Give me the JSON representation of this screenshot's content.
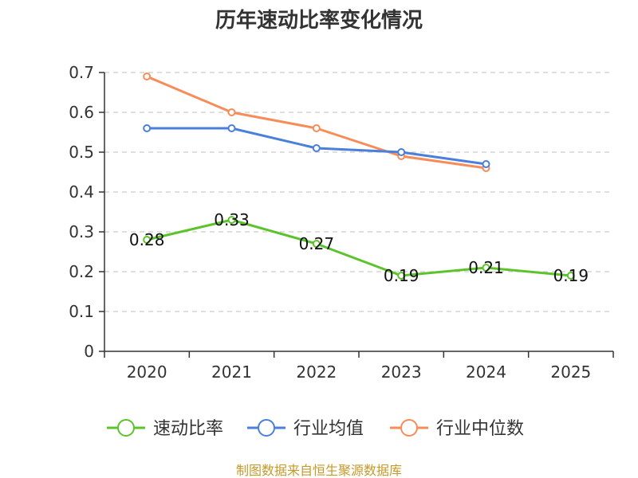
{
  "chart_data": {
    "type": "line",
    "title": "历年速动比率变化情况",
    "categories": [
      "2020",
      "2021",
      "2022",
      "2023",
      "2024",
      "2025"
    ],
    "ylim": [
      0,
      0.7
    ],
    "yticks": [
      "0",
      "0.1",
      "0.2",
      "0.3",
      "0.4",
      "0.5",
      "0.6",
      "0.7"
    ],
    "grid": true,
    "legend_position": "bottom",
    "series": [
      {
        "name": "速动比率",
        "color": "#5cc42a",
        "values": [
          0.28,
          0.33,
          0.27,
          0.19,
          0.21,
          0.19
        ],
        "labels": [
          "0.28",
          "0.33",
          "0.27",
          "0.19",
          "0.21",
          "0.19"
        ],
        "show_labels": true
      },
      {
        "name": "行业均值",
        "color": "#4a7fdc",
        "values": [
          0.56,
          0.56,
          0.51,
          0.5,
          0.47,
          null
        ],
        "show_labels": false
      },
      {
        "name": "行业中位数",
        "color": "#f88c58",
        "values": [
          0.69,
          0.6,
          0.56,
          0.49,
          0.46,
          null
        ],
        "show_labels": false
      }
    ]
  },
  "source_text": "制图数据来自恒生聚源数据库",
  "source_color": "#c49a2a"
}
